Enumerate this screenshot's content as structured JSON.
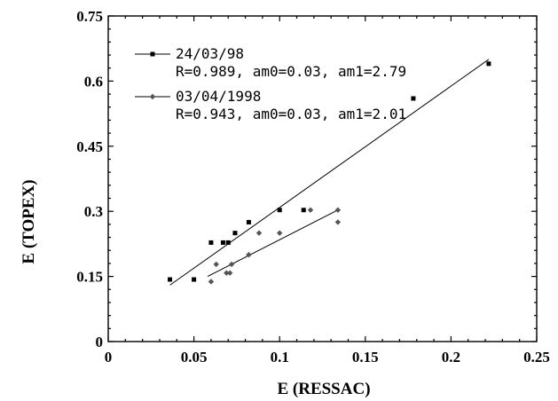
{
  "chart_data": {
    "type": "scatter",
    "title": "",
    "xlabel": "E (RESSAC)",
    "ylabel": "E (TOPEX)",
    "xlim": [
      0,
      0.25
    ],
    "ylim": [
      0,
      0.75
    ],
    "x_ticks": [
      "0",
      "0.05",
      "0.1",
      "0.15",
      "0.2",
      "0.25"
    ],
    "y_ticks": [
      "0",
      "0.15",
      "0.3",
      "0.45",
      "0.6",
      "0.75"
    ],
    "grid": false,
    "legend_position": "top-left",
    "series": [
      {
        "name": "24/03/98",
        "stats": "R=0.989, am0=0.03, am1=2.79",
        "marker": "square",
        "color": "#000000",
        "points": [
          [
            0.036,
            0.143
          ],
          [
            0.05,
            0.143
          ],
          [
            0.06,
            0.228
          ],
          [
            0.067,
            0.228
          ],
          [
            0.07,
            0.228
          ],
          [
            0.074,
            0.25
          ],
          [
            0.082,
            0.275
          ],
          [
            0.1,
            0.303
          ],
          [
            0.114,
            0.303
          ],
          [
            0.178,
            0.56
          ],
          [
            0.222,
            0.64
          ]
        ],
        "fit": [
          [
            0.036,
            0.13
          ],
          [
            0.222,
            0.65
          ]
        ]
      },
      {
        "name": "03/04/1998",
        "stats": "R=0.943, am0=0.03, am1=2.01",
        "marker": "diamond",
        "color": "#555555",
        "points": [
          [
            0.06,
            0.138
          ],
          [
            0.063,
            0.178
          ],
          [
            0.069,
            0.158
          ],
          [
            0.071,
            0.158
          ],
          [
            0.072,
            0.178
          ],
          [
            0.082,
            0.2
          ],
          [
            0.088,
            0.25
          ],
          [
            0.1,
            0.25
          ],
          [
            0.118,
            0.303
          ],
          [
            0.134,
            0.275
          ],
          [
            0.134,
            0.303
          ]
        ],
        "fit": [
          [
            0.058,
            0.15
          ],
          [
            0.134,
            0.303
          ]
        ]
      }
    ]
  }
}
